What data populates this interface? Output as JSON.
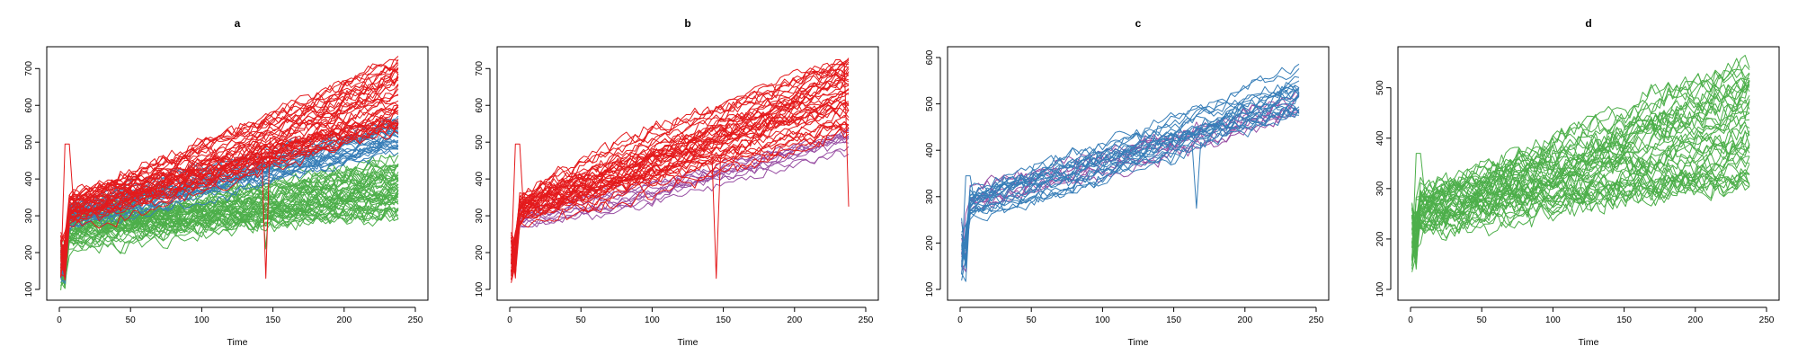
{
  "figure": {
    "colors": {
      "red": "#E41A1C",
      "blue": "#377EB8",
      "green": "#4DAF4A",
      "purple": "#984EA3"
    }
  },
  "chart_data": [
    {
      "type": "line",
      "title": "a",
      "xlabel": "Time",
      "ylabel": "",
      "xlim": [
        0,
        250
      ],
      "ylim": [
        100,
        730
      ],
      "xticks": [
        0,
        50,
        100,
        150,
        200,
        250
      ],
      "yticks": [
        100,
        200,
        300,
        400,
        500,
        600,
        700
      ],
      "groups": [
        {
          "color": "green",
          "count": 48,
          "y0": 170,
          "y_mid": [
            210,
            310
          ],
          "y_end": [
            300,
            470
          ],
          "noise": 22,
          "t_end": 240,
          "spike_t": 145,
          "spike_y": 210
        },
        {
          "color": "blue",
          "count": 26,
          "y0": 175,
          "y_mid": [
            270,
            330
          ],
          "y_end": [
            470,
            570
          ],
          "noise": 16,
          "t_end": 240
        },
        {
          "color": "red",
          "count": 42,
          "y0": 190,
          "y_mid": [
            280,
            350
          ],
          "y_end": [
            520,
            730
          ],
          "noise": 18,
          "t_end": 240,
          "spike_t": 145,
          "spike_y": 130,
          "early_spike": 495
        }
      ]
    },
    {
      "type": "line",
      "title": "b",
      "xlabel": "Time",
      "ylabel": "",
      "xlim": [
        0,
        250
      ],
      "ylim": [
        100,
        730
      ],
      "xticks": [
        0,
        50,
        100,
        150,
        200,
        250
      ],
      "yticks": [
        100,
        200,
        300,
        400,
        500,
        600,
        700
      ],
      "groups": [
        {
          "color": "purple",
          "count": 10,
          "y0": 200,
          "y_mid": [
            270,
            320
          ],
          "y_end": [
            470,
            540
          ],
          "noise": 14,
          "t_end": 240
        },
        {
          "color": "red",
          "count": 42,
          "y0": 190,
          "y_mid": [
            280,
            350
          ],
          "y_end": [
            520,
            730
          ],
          "noise": 18,
          "t_end": 240,
          "spike_t": 145,
          "spike_y": 130,
          "early_spike": 495,
          "end_drop": 325
        }
      ]
    },
    {
      "type": "line",
      "title": "c",
      "xlabel": "Time",
      "ylabel": "",
      "xlim": [
        0,
        250
      ],
      "ylim": [
        100,
        600
      ],
      "xticks": [
        0,
        50,
        100,
        150,
        200,
        250
      ],
      "yticks": [
        100,
        200,
        300,
        400,
        500,
        600
      ],
      "groups": [
        {
          "color": "purple",
          "count": 8,
          "y0": 200,
          "y_mid": [
            280,
            320
          ],
          "y_end": [
            460,
            520
          ],
          "noise": 16,
          "t_end": 240
        },
        {
          "color": "blue",
          "count": 22,
          "y0": 180,
          "y_mid": [
            250,
            320
          ],
          "y_end": [
            480,
            580
          ],
          "noise": 15,
          "t_end": 240,
          "spike_t": 165,
          "spike_y": 275,
          "early_spike": 345
        }
      ]
    },
    {
      "type": "line",
      "title": "d",
      "xlabel": "Time",
      "ylabel": "",
      "xlim": [
        0,
        250
      ],
      "ylim": [
        100,
        560
      ],
      "xticks": [
        0,
        50,
        100,
        150,
        200,
        250
      ],
      "yticks": [
        100,
        200,
        300,
        400,
        500
      ],
      "groups": [
        {
          "color": "green",
          "count": 45,
          "y0": 200,
          "y_mid": [
            215,
            300
          ],
          "y_end": [
            300,
            560
          ],
          "noise": 24,
          "t_end": 240,
          "early_spike": 370
        }
      ]
    }
  ]
}
